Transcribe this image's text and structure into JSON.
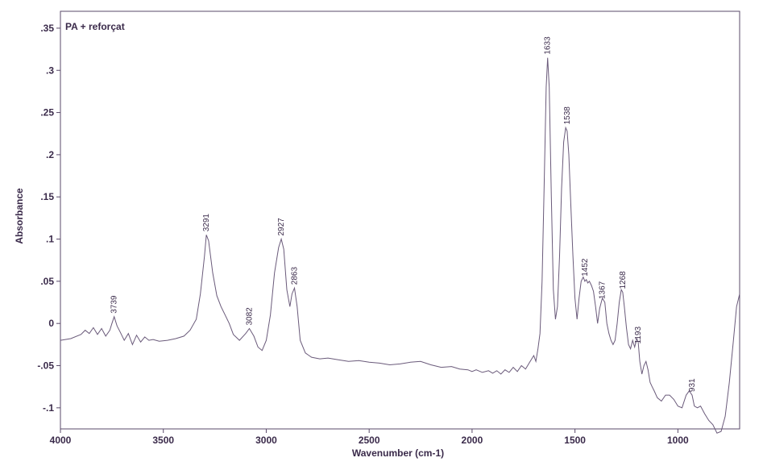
{
  "chart_data": {
    "type": "line",
    "title": "PA + reforçat",
    "xlabel": "Wavenumber (cm-1)",
    "ylabel": "Absorbance",
    "xlim": [
      4000,
      700
    ],
    "ylim": [
      -0.125,
      0.37
    ],
    "x_ticks": [
      4000,
      3500,
      3000,
      2500,
      2000,
      1500,
      1000
    ],
    "x_tick_labels": [
      "4000",
      "3500",
      "3000",
      "2500",
      "2000",
      "1500",
      "1000"
    ],
    "y_ticks": [
      0.35,
      0.3,
      0.25,
      0.2,
      0.15,
      0.1,
      0.05,
      0,
      -0.05,
      -0.1
    ],
    "y_tick_labels": [
      ".35",
      ".3",
      ".25",
      ".2",
      ".15",
      ".1",
      ".05",
      "0",
      "-.05",
      "-.1"
    ],
    "grid": false,
    "line_color": "#6a5a7a",
    "series": [
      {
        "x": [
          4000,
          3950,
          3900,
          3880,
          3860,
          3840,
          3820,
          3800,
          3780,
          3760,
          3750,
          3739,
          3725,
          3710,
          3690,
          3670,
          3650,
          3630,
          3610,
          3590,
          3570,
          3550,
          3520,
          3480,
          3440,
          3400,
          3370,
          3340,
          3320,
          3300,
          3291,
          3280,
          3260,
          3240,
          3220,
          3200,
          3180,
          3160,
          3130,
          3100,
          3082,
          3060,
          3040,
          3020,
          3000,
          2980,
          2960,
          2940,
          2927,
          2915,
          2900,
          2885,
          2875,
          2863,
          2850,
          2835,
          2810,
          2780,
          2740,
          2700,
          2650,
          2600,
          2550,
          2500,
          2450,
          2400,
          2350,
          2300,
          2250,
          2200,
          2150,
          2100,
          2060,
          2020,
          2000,
          1980,
          1950,
          1920,
          1900,
          1880,
          1860,
          1840,
          1820,
          1800,
          1780,
          1760,
          1740,
          1720,
          1700,
          1690,
          1680,
          1670,
          1660,
          1650,
          1640,
          1633,
          1625,
          1615,
          1605,
          1595,
          1585,
          1575,
          1565,
          1555,
          1545,
          1538,
          1530,
          1520,
          1510,
          1500,
          1490,
          1480,
          1470,
          1460,
          1452,
          1445,
          1438,
          1430,
          1420,
          1410,
          1400,
          1390,
          1380,
          1367,
          1355,
          1345,
          1335,
          1325,
          1315,
          1305,
          1295,
          1285,
          1275,
          1268,
          1260,
          1250,
          1240,
          1230,
          1220,
          1210,
          1200,
          1193,
          1185,
          1175,
          1165,
          1155,
          1145,
          1135,
          1125,
          1115,
          1100,
          1080,
          1060,
          1040,
          1020,
          1000,
          980,
          960,
          945,
          931,
          920,
          905,
          890,
          870,
          850,
          830,
          810,
          790,
          770,
          750,
          730,
          715,
          700
        ],
        "y": [
          -0.02,
          -0.018,
          -0.013,
          -0.008,
          -0.012,
          -0.005,
          -0.013,
          -0.006,
          -0.015,
          -0.008,
          0.0,
          0.008,
          -0.003,
          -0.01,
          -0.02,
          -0.012,
          -0.025,
          -0.014,
          -0.022,
          -0.016,
          -0.02,
          -0.019,
          -0.021,
          -0.02,
          -0.018,
          -0.015,
          -0.008,
          0.005,
          0.035,
          0.08,
          0.105,
          0.098,
          0.06,
          0.033,
          0.02,
          0.01,
          0.0,
          -0.013,
          -0.02,
          -0.012,
          -0.006,
          -0.015,
          -0.028,
          -0.032,
          -0.02,
          0.01,
          0.06,
          0.09,
          0.1,
          0.088,
          0.04,
          0.02,
          0.035,
          0.042,
          0.02,
          -0.02,
          -0.035,
          -0.04,
          -0.042,
          -0.041,
          -0.043,
          -0.045,
          -0.044,
          -0.046,
          -0.047,
          -0.049,
          -0.048,
          -0.046,
          -0.045,
          -0.049,
          -0.052,
          -0.051,
          -0.054,
          -0.055,
          -0.057,
          -0.055,
          -0.058,
          -0.056,
          -0.059,
          -0.056,
          -0.06,
          -0.055,
          -0.058,
          -0.052,
          -0.057,
          -0.05,
          -0.054,
          -0.046,
          -0.038,
          -0.045,
          -0.03,
          -0.012,
          0.05,
          0.16,
          0.28,
          0.315,
          0.28,
          0.15,
          0.04,
          0.005,
          0.02,
          0.08,
          0.16,
          0.215,
          0.232,
          0.228,
          0.2,
          0.14,
          0.08,
          0.03,
          0.005,
          0.03,
          0.05,
          0.055,
          0.05,
          0.052,
          0.048,
          0.05,
          0.045,
          0.038,
          0.02,
          0.0,
          0.018,
          0.03,
          0.025,
          0.0,
          -0.012,
          -0.02,
          -0.025,
          -0.02,
          0.0,
          0.025,
          0.04,
          0.037,
          0.02,
          -0.005,
          -0.025,
          -0.03,
          -0.02,
          -0.028,
          -0.018,
          -0.022,
          -0.045,
          -0.06,
          -0.05,
          -0.045,
          -0.055,
          -0.07,
          -0.075,
          -0.08,
          -0.088,
          -0.092,
          -0.085,
          -0.085,
          -0.09,
          -0.098,
          -0.1,
          -0.085,
          -0.08,
          -0.085,
          -0.098,
          -0.1,
          -0.098,
          -0.107,
          -0.115,
          -0.12,
          -0.13,
          -0.128,
          -0.11,
          -0.07,
          -0.02,
          0.02,
          0.035
        ]
      }
    ],
    "peak_labels": [
      {
        "x": 3739,
        "y": 0.008,
        "text": "3739"
      },
      {
        "x": 3291,
        "y": 0.105,
        "text": "3291"
      },
      {
        "x": 3082,
        "y": -0.006,
        "text": "3082"
      },
      {
        "x": 2927,
        "y": 0.1,
        "text": "2927"
      },
      {
        "x": 2863,
        "y": 0.042,
        "text": "2863"
      },
      {
        "x": 1633,
        "y": 0.315,
        "text": "1633"
      },
      {
        "x": 1538,
        "y": 0.232,
        "text": "1538"
      },
      {
        "x": 1452,
        "y": 0.052,
        "text": "1452"
      },
      {
        "x": 1367,
        "y": 0.025,
        "text": "1367"
      },
      {
        "x": 1268,
        "y": 0.037,
        "text": "1268"
      },
      {
        "x": 1193,
        "y": -0.028,
        "text": "1193"
      },
      {
        "x": 931,
        "y": -0.085,
        "text": "931"
      }
    ]
  }
}
